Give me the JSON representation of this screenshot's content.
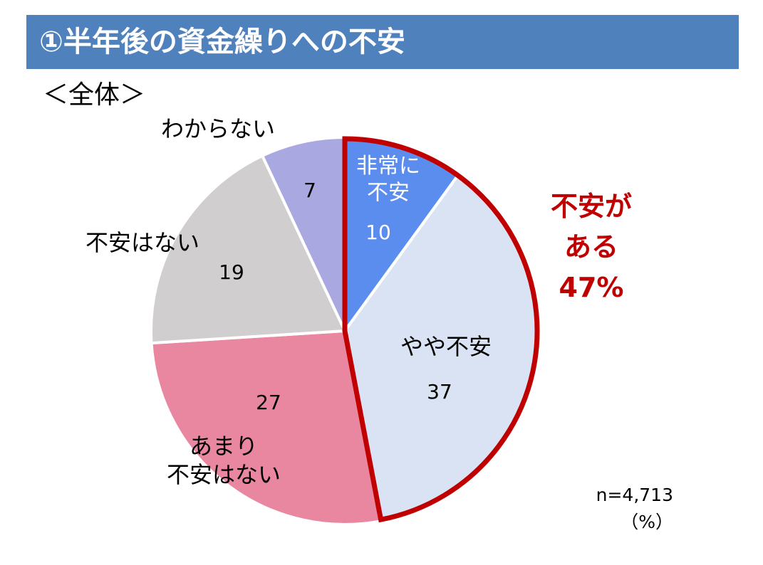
{
  "header": {
    "title": "①半年後の資金繰りへの不安",
    "subtitle": "＜全体＞"
  },
  "chart_data": {
    "type": "pie",
    "slices": [
      {
        "label": "非常に\n不安",
        "value": 10,
        "color": "#5b8def",
        "label_color": "#ffffff"
      },
      {
        "label": "やや不安",
        "value": 37,
        "color": "#dae3f3",
        "label_color": "#000000"
      },
      {
        "label": "あまり\n不安はない",
        "value": 27,
        "color": "#e8879f",
        "label_color": "#000000"
      },
      {
        "label": "不安はない",
        "value": 19,
        "color": "#d0cece",
        "label_color": "#000000"
      },
      {
        "label": "わからない",
        "value": 7,
        "color": "#a9a8e0",
        "label_color": "#000000"
      }
    ],
    "highlight": {
      "lines": [
        "不安が",
        "ある",
        "47%"
      ],
      "color": "#c00000"
    },
    "sample_size": "n=4,713",
    "unit": "（%）"
  }
}
